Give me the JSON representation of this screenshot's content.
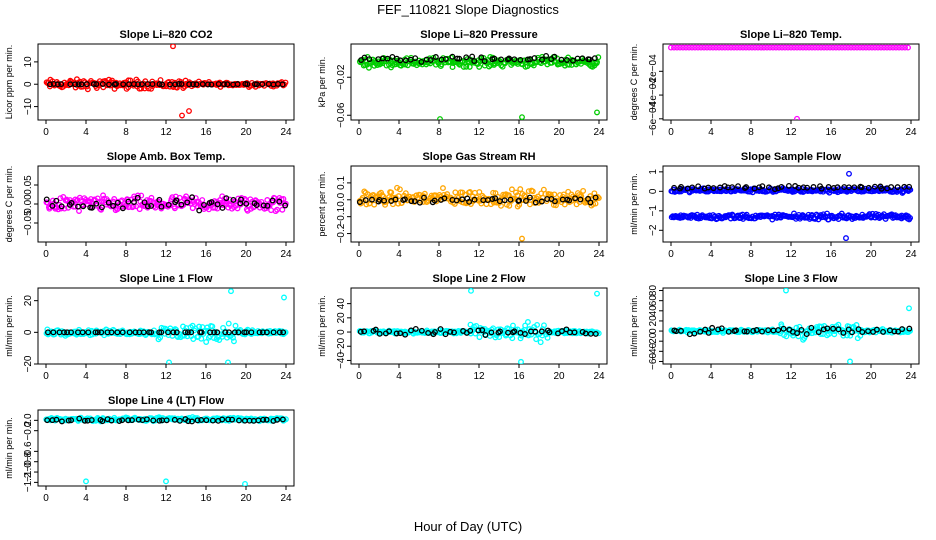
{
  "title": "FEF_110821  Slope Diagnostics",
  "xlabel": "Hour of Day (UTC)",
  "chart_data": [
    {
      "type": "scatter",
      "title": "Slope Li–820 CO2",
      "ylabel": "Licor ppm per min.",
      "color": "#ff0000",
      "xlim": [
        -0.8,
        24.8
      ],
      "ylim": [
        -16,
        18
      ],
      "xticks": [
        0,
        4,
        8,
        12,
        16,
        20,
        24
      ],
      "yticks": [
        10,
        0,
        -10
      ],
      "ytick_labels": [
        "10",
        "0",
        "−10"
      ],
      "outliers": [
        {
          "x": 12.7,
          "y": 17
        },
        {
          "x": 13.6,
          "y": -14
        },
        {
          "x": 14.3,
          "y": -12
        }
      ],
      "series": [
        {
          "role": "scatter",
          "x0": 0,
          "x1": 24,
          "center": 0,
          "spread": 3.0,
          "spread_taper": 0.5
        },
        {
          "role": "black",
          "x0": 0,
          "x1": 24,
          "center": 0,
          "spread": 0.25
        }
      ]
    },
    {
      "type": "scatter",
      "title": "Slope Li–820 Pressure",
      "ylabel": "kPa per min.",
      "color": "#00cc00",
      "xlim": [
        -0.8,
        24.8
      ],
      "ylim": [
        -0.065,
        0.015
      ],
      "xticks": [
        0,
        4,
        8,
        12,
        16,
        20,
        24
      ],
      "yticks": [
        -0.02,
        -0.06
      ],
      "ytick_labels": [
        "−0.02",
        "−0.06"
      ],
      "outliers": [
        {
          "x": 8.1,
          "y": -0.064
        },
        {
          "x": 16.3,
          "y": -0.062
        },
        {
          "x": 23.8,
          "y": -0.057
        }
      ],
      "series": [
        {
          "role": "scatter",
          "x0": 0,
          "x1": 24,
          "center": -0.004,
          "spread": 0.007
        },
        {
          "role": "black",
          "x0": 0,
          "x1": 24,
          "center": -0.001,
          "spread": 0.004
        }
      ]
    },
    {
      "type": "scatter",
      "title": "Slope Li–820 Temp.",
      "ylabel": "degrees C per min.",
      "color": "#ff00ff",
      "xlim": [
        -0.8,
        24.8
      ],
      "ylim": [
        -0.00061,
        3e-05
      ],
      "xticks": [
        0,
        4,
        8,
        12,
        16,
        20,
        24
      ],
      "yticks": [
        -0.0002,
        -0.0004,
        -0.0006
      ],
      "ytick_labels": [
        "−2e−04",
        "−4e−04",
        "−6e−04"
      ],
      "outliers": [
        {
          "x": 12.6,
          "y": -0.0006
        }
      ],
      "series": [
        {
          "role": "line",
          "x0": 0,
          "x1": 24,
          "center": 0,
          "spread": 0
        }
      ]
    },
    {
      "type": "scatter",
      "title": "Slope Amb. Box Temp.",
      "ylabel": "degrees C per min.",
      "color": "#ff00ff",
      "xlim": [
        -0.8,
        24.8
      ],
      "ylim": [
        -0.1,
        0.1
      ],
      "xticks": [
        0,
        4,
        8,
        12,
        16,
        20,
        24
      ],
      "yticks": [
        0.05,
        0,
        -0.05
      ],
      "ytick_labels": [
        "0.05",
        "0.00",
        "−0.05"
      ],
      "outliers": [],
      "series": [
        {
          "role": "scatter",
          "x0": 0,
          "x1": 24,
          "center": 0,
          "spread": 0.03
        },
        {
          "role": "black",
          "x0": 0,
          "x1": 24,
          "center": 0,
          "spread": 0.025
        }
      ]
    },
    {
      "type": "scatter",
      "title": "Slope Gas Stream RH",
      "ylabel": "percent per min.",
      "color": "#ffa500",
      "xlim": [
        -0.8,
        24.8
      ],
      "ylim": [
        -0.25,
        0.2
      ],
      "xticks": [
        0,
        4,
        8,
        12,
        16,
        20,
        24
      ],
      "yticks": [
        0.1,
        0,
        -0.1,
        -0.2
      ],
      "ytick_labels": [
        "0.1",
        "0.0",
        "−0.1",
        "−0.2"
      ],
      "outliers": [
        {
          "x": 16.3,
          "y": -0.23
        }
      ],
      "series": [
        {
          "role": "scatter",
          "x0": 0,
          "x1": 24,
          "center": 0.01,
          "spread": 0.07
        },
        {
          "role": "black",
          "x0": 0,
          "x1": 24,
          "center": 0.0,
          "spread": 0.03
        }
      ]
    },
    {
      "type": "scatter",
      "title": "Slope Sample Flow",
      "ylabel": "ml/min per min.",
      "color": "#0000ff",
      "xlim": [
        -0.8,
        24.8
      ],
      "ylim": [
        -2.6,
        1.3
      ],
      "xticks": [
        0,
        4,
        8,
        12,
        16,
        20,
        24
      ],
      "yticks": [
        1,
        0,
        -1,
        -2
      ],
      "ytick_labels": [
        "1",
        "0",
        "−1",
        "−2"
      ],
      "outliers": [
        {
          "x": 17.5,
          "y": -2.4
        },
        {
          "x": 17.8,
          "y": 0.9
        }
      ],
      "series": [
        {
          "role": "scatter",
          "x0": 0,
          "x1": 24,
          "center": 0.05,
          "spread": 0.15
        },
        {
          "role": "scatter",
          "x0": 0,
          "x1": 24,
          "center": -1.3,
          "spread": 0.2
        },
        {
          "role": "black",
          "x0": 0,
          "x1": 24,
          "center": 0.2,
          "spread": 0.15
        }
      ]
    },
    {
      "type": "scatter",
      "title": "Slope Line 1 Flow",
      "ylabel": "ml/min per min.",
      "color": "#00ffff",
      "xlim": [
        -0.8,
        24.8
      ],
      "ylim": [
        -20,
        28
      ],
      "xticks": [
        0,
        4,
        8,
        12,
        16,
        20,
        24
      ],
      "yticks": [
        20,
        0,
        -20
      ],
      "ytick_labels": [
        "20",
        "0",
        "−20"
      ],
      "outliers": [
        {
          "x": 18.5,
          "y": 26
        },
        {
          "x": 23.8,
          "y": 22
        },
        {
          "x": 12.3,
          "y": -19
        },
        {
          "x": 18.2,
          "y": -19
        }
      ],
      "series": [
        {
          "role": "scatter",
          "x0": 0,
          "x1": 24,
          "center": 0,
          "spread": 2.5,
          "burst": [
            11,
            19,
            8
          ]
        },
        {
          "role": "black",
          "x0": 0,
          "x1": 24,
          "center": 0,
          "spread": 0
        }
      ]
    },
    {
      "type": "scatter",
      "title": "Slope Line 2 Flow",
      "ylabel": "ml/min per min.",
      "color": "#00ffff",
      "xlim": [
        -0.8,
        24.8
      ],
      "ylim": [
        -45,
        62
      ],
      "xticks": [
        0,
        4,
        8,
        12,
        16,
        20,
        24
      ],
      "yticks": [
        40,
        20,
        0,
        -20,
        -40
      ],
      "ytick_labels": [
        "40",
        "20",
        "0",
        "−20",
        "−40"
      ],
      "outliers": [
        {
          "x": 11.2,
          "y": 58
        },
        {
          "x": 23.8,
          "y": 54
        },
        {
          "x": 16.2,
          "y": -42
        }
      ],
      "series": [
        {
          "role": "scatter",
          "x0": 0,
          "x1": 24,
          "center": 0,
          "spread": 3,
          "burst": [
            11,
            19,
            18
          ]
        },
        {
          "role": "black",
          "x0": 0,
          "x1": 24,
          "center": 0,
          "spread": 6
        }
      ]
    },
    {
      "type": "scatter",
      "title": "Slope Line 3 Flow",
      "ylabel": "ml/min per min.",
      "color": "#00ffff",
      "xlim": [
        -0.8,
        24.8
      ],
      "ylim": [
        -65,
        85
      ],
      "xticks": [
        0,
        4,
        8,
        12,
        16,
        20,
        24
      ],
      "yticks": [
        80,
        60,
        40,
        20,
        0,
        -20,
        -40,
        -60
      ],
      "ytick_labels": [
        "80",
        "60",
        "40",
        "20",
        "0",
        "−20",
        "−40",
        "−60"
      ],
      "outliers": [
        {
          "x": 11.5,
          "y": 80
        },
        {
          "x": 23.8,
          "y": 45
        },
        {
          "x": 17.9,
          "y": -60
        }
      ],
      "series": [
        {
          "role": "scatter",
          "x0": 0,
          "x1": 24,
          "center": 0,
          "spread": 5,
          "burst": [
            11,
            19,
            22
          ]
        },
        {
          "role": "black",
          "x0": 0,
          "x1": 24,
          "center": 0,
          "spread": 10
        }
      ]
    },
    {
      "type": "scatter",
      "title": "Slope Line 4 (LT) Flow",
      "ylabel": "ml/min per min.",
      "color": "#00ffff",
      "xlim": [
        -0.8,
        24.8
      ],
      "ylim": [
        -1.27,
        0.2
      ],
      "xticks": [
        0,
        4,
        8,
        12,
        16,
        20,
        24
      ],
      "yticks": [
        0,
        -0.2,
        -0.6,
        -0.8,
        -1,
        -1.2
      ],
      "ytick_labels": [
        "0.0",
        "−0.2",
        "−0.6",
        "−0.8",
        "−1.0",
        "−1.2"
      ],
      "outliers": [
        {
          "x": 4.0,
          "y": -1.18
        },
        {
          "x": 12.0,
          "y": -1.18
        },
        {
          "x": 19.9,
          "y": -1.23
        }
      ],
      "series": [
        {
          "role": "scatter",
          "x0": 0,
          "x1": 24,
          "center": 0.02,
          "spread": 0.05
        },
        {
          "role": "black",
          "x0": 0,
          "x1": 24,
          "center": 0.0,
          "spread": 0.04
        }
      ]
    }
  ]
}
